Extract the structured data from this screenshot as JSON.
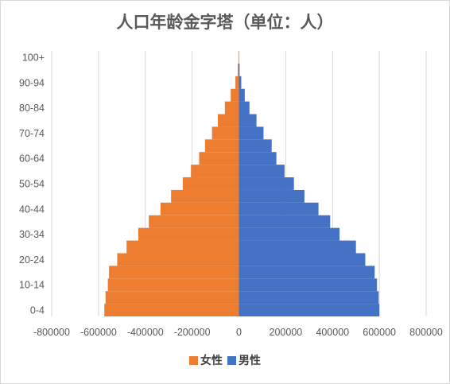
{
  "chart_data": {
    "type": "bar",
    "orientation": "horizontal",
    "title": "人口年龄金字塔（单位：人）",
    "categories": [
      "0-4",
      "5-9",
      "10-14",
      "15-19",
      "20-24",
      "25-29",
      "30-34",
      "35-39",
      "40-44",
      "45-49",
      "50-54",
      "55-59",
      "60-64",
      "65-69",
      "70-74",
      "75-79",
      "80-84",
      "85-89",
      "90-94",
      "95-99",
      "100+"
    ],
    "category_tick_labels": [
      "0-4",
      "10-14",
      "20-24",
      "30-34",
      "40-44",
      "50-54",
      "60-64",
      "70-74",
      "80-84",
      "90-94",
      "100+"
    ],
    "series": [
      {
        "name": "女性",
        "color": "#ED7D31",
        "values": [
          -575000,
          -570000,
          -560000,
          -555000,
          -520000,
          -480000,
          -430000,
          -385000,
          -335000,
          -290000,
          -240000,
          -205000,
          -170000,
          -145000,
          -115000,
          -90000,
          -60000,
          -35000,
          -15000,
          -5000,
          -1000
        ]
      },
      {
        "name": "男性",
        "color": "#4472C4",
        "values": [
          600000,
          597000,
          590000,
          580000,
          540000,
          500000,
          430000,
          390000,
          340000,
          280000,
          235000,
          195000,
          160000,
          140000,
          105000,
          75000,
          45000,
          25000,
          10000,
          3000,
          500
        ]
      }
    ],
    "xlim": [
      -800000,
      800000
    ],
    "x_ticks": [
      -800000,
      -600000,
      -400000,
      -200000,
      0,
      200000,
      400000,
      600000,
      800000
    ],
    "x_tick_labels": [
      "-800000",
      "-600000",
      "-400000",
      "-200000",
      "0",
      "200000",
      "400000",
      "600000",
      "800000"
    ],
    "grid": true,
    "legend_position": "bottom"
  }
}
